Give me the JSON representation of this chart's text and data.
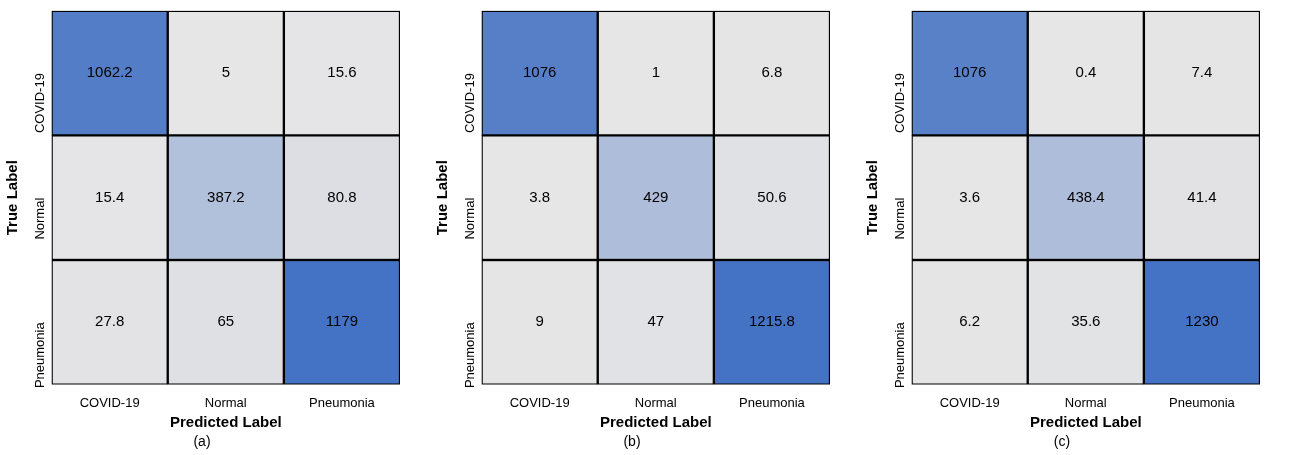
{
  "chart_data": [
    {
      "type": "heatmap",
      "title": "(a)",
      "xlabel": "Predicted Label",
      "ylabel": "True Label",
      "categories": [
        "COVID-19",
        "Normal",
        "Pneumonia"
      ],
      "y_categories": [
        "COVID-19",
        "Normal",
        "Pneumonia"
      ],
      "cells": [
        [
          1062.2,
          5,
          15.6
        ],
        [
          15.4,
          387.2,
          80.8
        ],
        [
          27.8,
          65,
          1179
        ]
      ],
      "data_labels": true
    },
    {
      "type": "heatmap",
      "title": "(b)",
      "xlabel": "Predicted Label",
      "ylabel": "True Label",
      "categories": [
        "COVID-19",
        "Normal",
        "Pneumonia"
      ],
      "y_categories": [
        "COVID-19",
        "Normal",
        "Pneumonia"
      ],
      "cells": [
        [
          1076,
          1,
          6.8
        ],
        [
          3.8,
          429,
          50.6
        ],
        [
          9,
          47,
          1215.8
        ]
      ],
      "data_labels": true
    },
    {
      "type": "heatmap",
      "title": "(c)",
      "xlabel": "Predicted Label",
      "ylabel": "True Label",
      "categories": [
        "COVID-19",
        "Normal",
        "Pneumonia"
      ],
      "y_categories": [
        "COVID-19",
        "Normal",
        "Pneumonia"
      ],
      "cells": [
        [
          1076,
          0.4,
          7.4
        ],
        [
          3.6,
          438.4,
          41.4
        ],
        [
          6.2,
          35.6,
          1230
        ]
      ],
      "data_labels": true
    }
  ]
}
